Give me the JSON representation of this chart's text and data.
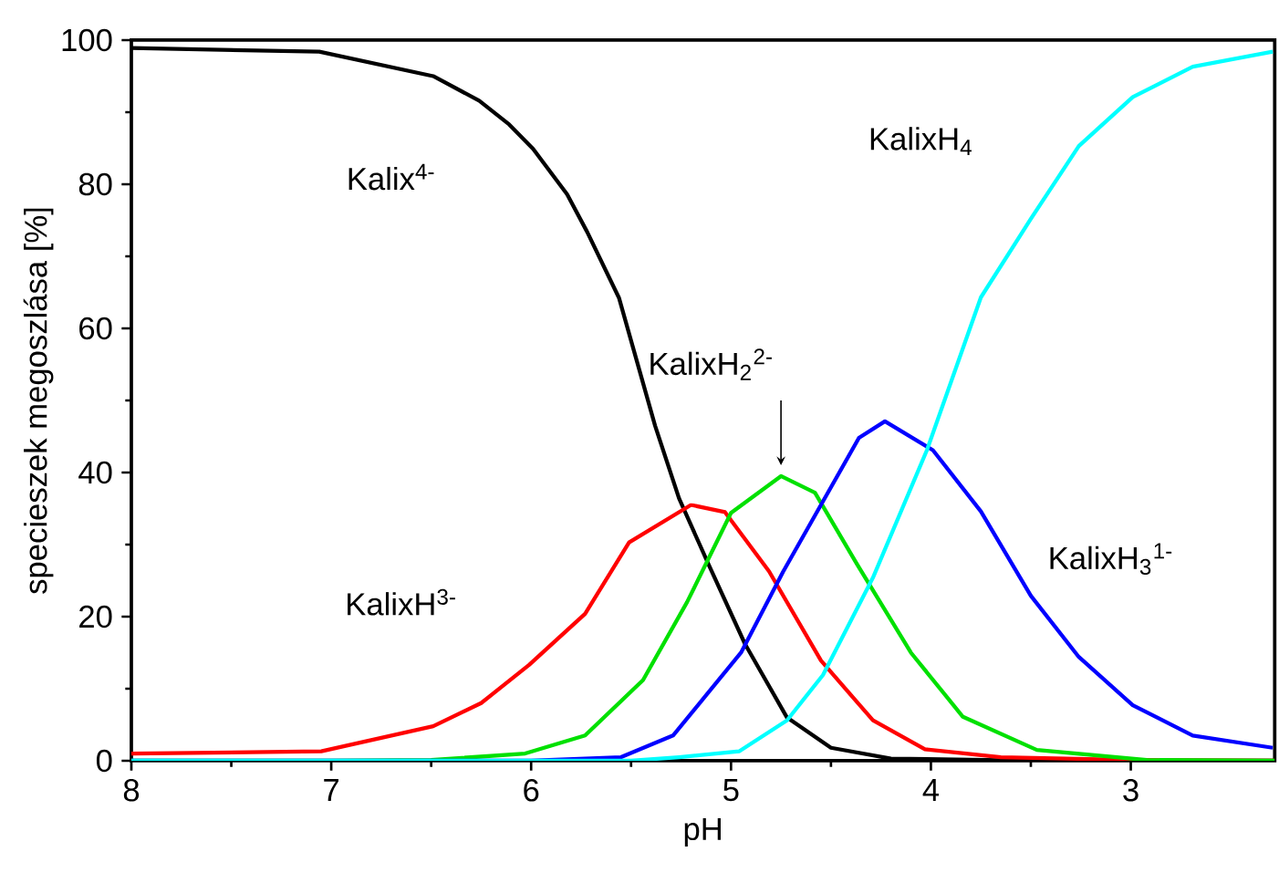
{
  "chart_data": {
    "type": "line",
    "xlabel": "pH",
    "ylabel": "specieszek megoszlása [%]",
    "xlim": [
      8,
      2.28
    ],
    "ylim": [
      0,
      100
    ],
    "xticks": [
      8,
      7,
      6,
      5,
      4,
      3
    ],
    "yticks": [
      0,
      20,
      40,
      60,
      80,
      100
    ],
    "grid": false,
    "line_style": "solid",
    "series": [
      {
        "name": "Kalix$^{4-}$",
        "color": "#000000",
        "x": [
          8,
          7.06,
          6.49,
          6.26,
          6.11,
          5.99,
          5.82,
          5.72,
          5.56,
          5.38,
          5.26,
          5.11,
          4.93,
          4.72,
          4.5,
          4.2,
          3.5,
          2.28
        ],
        "values": [
          98.9,
          98.4,
          95.0,
          91.6,
          88.3,
          84.9,
          78.6,
          73.4,
          64.2,
          46.5,
          36.4,
          27.1,
          16.2,
          6.0,
          1.8,
          0.3,
          0,
          0
        ]
      },
      {
        "name": "KalixH$^{3-}$",
        "color": "#ff0000",
        "x": [
          8,
          7.05,
          6.49,
          6.25,
          6.01,
          5.73,
          5.51,
          5.2,
          5.03,
          4.81,
          4.55,
          4.29,
          4.03,
          3.65,
          3.0,
          2.28
        ],
        "values": [
          1.0,
          1.3,
          4.8,
          8.0,
          13.3,
          20.4,
          30.3,
          35.5,
          34.5,
          26.3,
          13.9,
          5.6,
          1.6,
          0.5,
          0.1,
          0
        ]
      },
      {
        "name": "KalixH$_{2}$$^{2-}$",
        "color": "#00e000",
        "x": [
          8,
          7,
          6.5,
          6.03,
          5.73,
          5.44,
          5.22,
          5.0,
          4.75,
          4.58,
          4.37,
          4.1,
          3.84,
          3.47,
          2.92,
          2.28
        ],
        "values": [
          0,
          0,
          0.1,
          1.0,
          3.5,
          11.2,
          22.0,
          34.4,
          39.5,
          37.2,
          27.3,
          15.0,
          6.1,
          1.5,
          0.1,
          0
        ]
      },
      {
        "name": "KalixH$_{3}$$^{1-}$",
        "color": "#0000ff",
        "x": [
          8,
          6,
          5.55,
          5.29,
          4.95,
          4.74,
          4.55,
          4.36,
          4.23,
          3.99,
          3.75,
          3.5,
          3.26,
          2.99,
          2.69,
          2.29
        ],
        "values": [
          0,
          0,
          0.5,
          3.5,
          15.0,
          26.2,
          35.5,
          44.8,
          47.1,
          43.1,
          34.6,
          22.9,
          14.4,
          7.7,
          3.5,
          1.8
        ]
      },
      {
        "name": "KalixH$_{4}$",
        "color": "#00ffff",
        "x": [
          8,
          5.5,
          5.26,
          4.96,
          4.72,
          4.54,
          4.29,
          4.02,
          3.75,
          3.5,
          3.26,
          2.99,
          2.69,
          2.29
        ],
        "values": [
          0,
          0,
          0.5,
          1.3,
          5.6,
          11.9,
          25.4,
          43.1,
          64.3,
          75.2,
          85.3,
          92.1,
          96.3,
          98.4
        ]
      }
    ]
  }
}
